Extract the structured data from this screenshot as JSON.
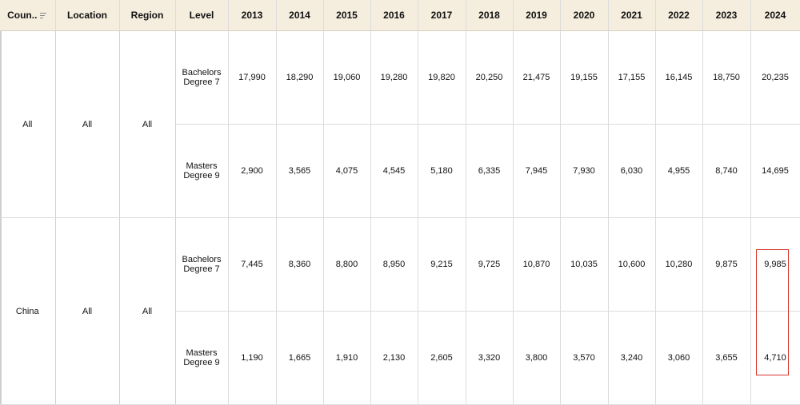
{
  "table": {
    "headers": [
      "Coun..",
      "Location",
      "Region",
      "Level",
      "2013",
      "2014",
      "2015",
      "2016",
      "2017",
      "2018",
      "2019",
      "2020",
      "2021",
      "2022",
      "2023",
      "2024"
    ],
    "sort_icon": "sort-descending-icon",
    "groups": [
      {
        "country": "All",
        "location": "All",
        "region": "All",
        "rows": [
          {
            "level_line1": "Bachelors",
            "level_line2": "Degree 7",
            "values": [
              "17,990",
              "18,290",
              "19,060",
              "19,280",
              "19,820",
              "20,250",
              "21,475",
              "19,155",
              "17,155",
              "16,145",
              "18,750",
              "20,235"
            ]
          },
          {
            "level_line1": "Masters",
            "level_line2": "Degree 9",
            "values": [
              "2,900",
              "3,565",
              "4,075",
              "4,545",
              "5,180",
              "6,335",
              "7,945",
              "7,930",
              "6,030",
              "4,955",
              "8,740",
              "14,695"
            ]
          }
        ]
      },
      {
        "country": "China",
        "location": "All",
        "region": "All",
        "rows": [
          {
            "level_line1": "Bachelors",
            "level_line2": "Degree 7",
            "values": [
              "7,445",
              "8,360",
              "8,800",
              "8,950",
              "9,215",
              "9,725",
              "10,870",
              "10,035",
              "10,600",
              "10,280",
              "9,875",
              "9,985"
            ]
          },
          {
            "level_line1": "Masters",
            "level_line2": "Degree 9",
            "values": [
              "1,190",
              "1,665",
              "1,910",
              "2,130",
              "2,605",
              "3,320",
              "3,800",
              "3,570",
              "3,240",
              "3,060",
              "3,655",
              "4,710"
            ]
          }
        ]
      }
    ]
  },
  "colors": {
    "header_bg": "#f5eedf",
    "highlight": "#d9342b",
    "grid_line": "#dcdcdc"
  }
}
